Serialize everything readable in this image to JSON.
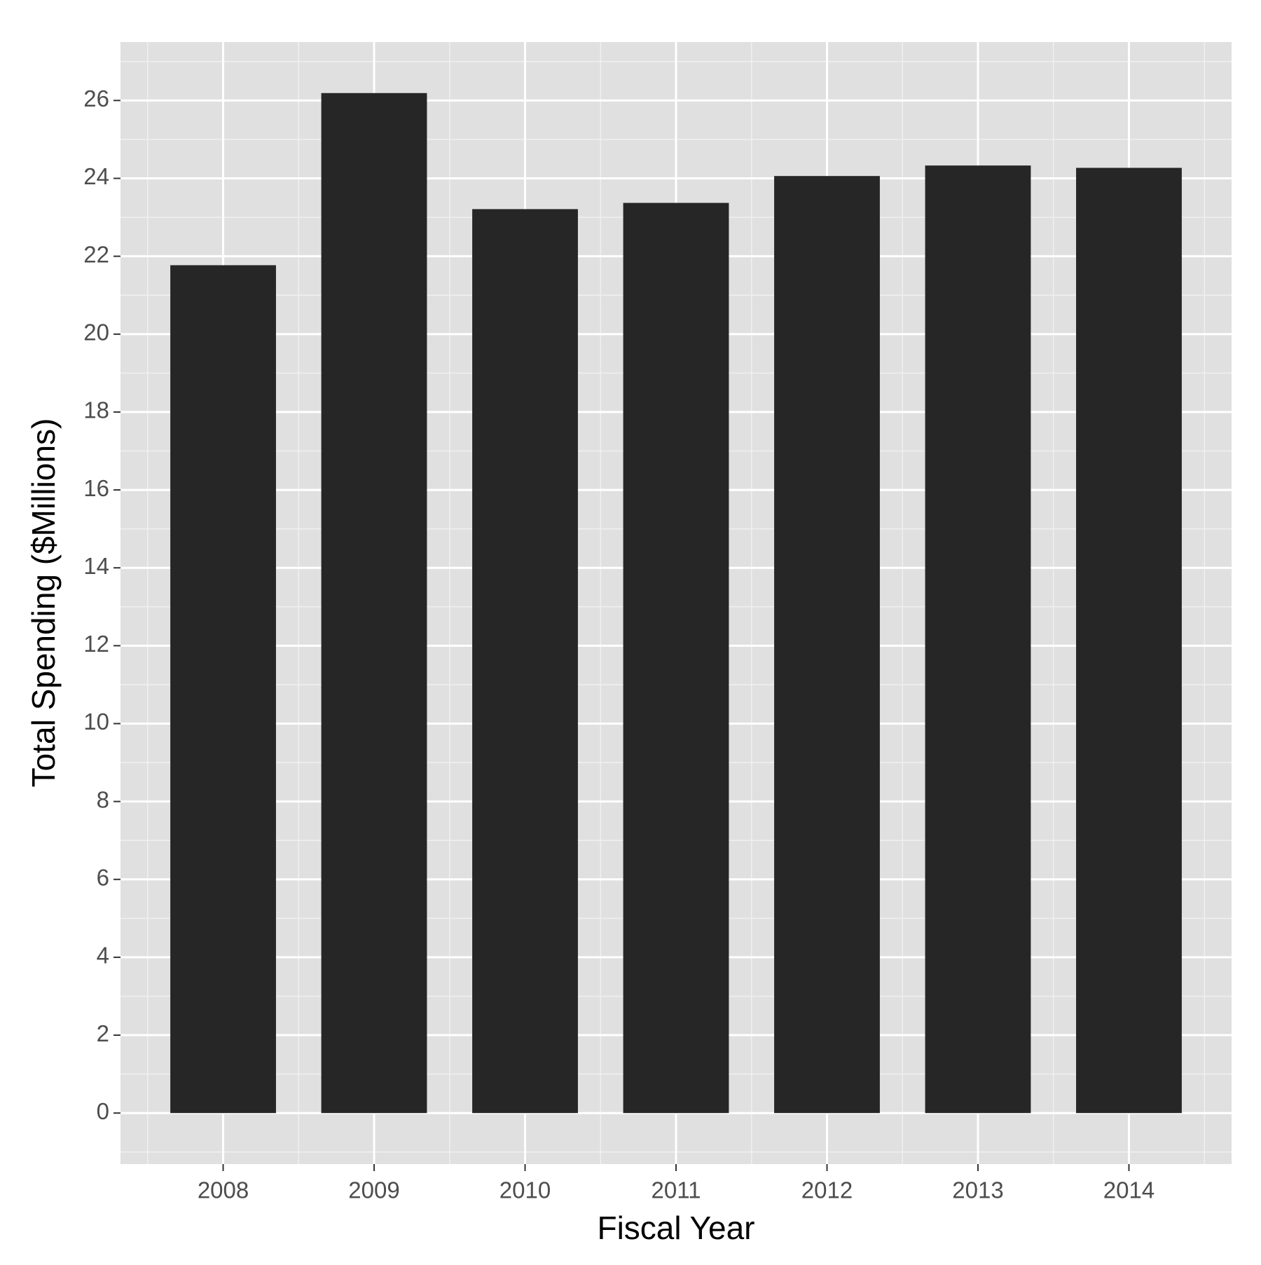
{
  "chart_data": {
    "type": "bar",
    "x_label": "Fiscal Year",
    "y_label": "Total Spending ($Millions)",
    "categories": [
      "2008",
      "2009",
      "2010",
      "2011",
      "2012",
      "2013",
      "2014"
    ],
    "values": [
      21.77,
      26.19,
      23.21,
      23.37,
      24.06,
      24.33,
      24.27
    ],
    "color": "#262626",
    "ylim": [
      -1.31,
      27.5
    ],
    "yticks": [
      0,
      2,
      4,
      6,
      8,
      10,
      12,
      14,
      16,
      18,
      20,
      22,
      24,
      26
    ],
    "grid": true
  }
}
